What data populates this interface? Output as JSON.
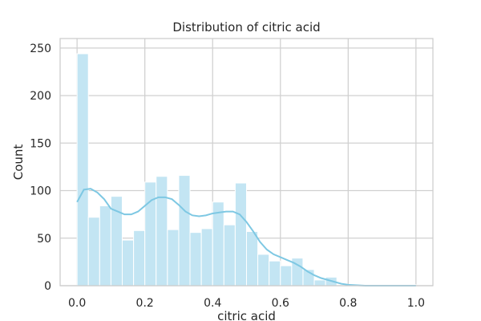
{
  "chart_data": {
    "type": "bar",
    "subtype": "histogram-with-kde",
    "title": "Distribution of citric acid",
    "xlabel": "citric acid",
    "ylabel": "Count",
    "xlim": [
      -0.05,
      1.05
    ],
    "ylim": [
      0,
      260
    ],
    "xticks": [
      "0.0",
      "0.2",
      "0.4",
      "0.6",
      "0.8",
      "1.0"
    ],
    "yticks": [
      "0",
      "50",
      "100",
      "150",
      "200",
      "250"
    ],
    "bin_width": 0.0333,
    "bin_starts": [
      0.0,
      0.0333,
      0.0667,
      0.1,
      0.1333,
      0.1667,
      0.2,
      0.2333,
      0.2667,
      0.3,
      0.3333,
      0.3667,
      0.4,
      0.4333,
      0.4667,
      0.5,
      0.5333,
      0.5667,
      0.6,
      0.6333,
      0.6667,
      0.7,
      0.7333,
      0.7667,
      0.8,
      0.8333,
      0.8667,
      0.9,
      0.9333,
      0.9667
    ],
    "counts": [
      244,
      72,
      84,
      94,
      48,
      58,
      109,
      115,
      59,
      116,
      56,
      60,
      88,
      64,
      108,
      57,
      33,
      26,
      21,
      29,
      17,
      6,
      9,
      0,
      0,
      0,
      0,
      0,
      0,
      1
    ],
    "kde": {
      "x": [
        0.0,
        0.02,
        0.04,
        0.06,
        0.08,
        0.1,
        0.12,
        0.14,
        0.16,
        0.18,
        0.2,
        0.22,
        0.24,
        0.26,
        0.28,
        0.3,
        0.32,
        0.34,
        0.36,
        0.38,
        0.4,
        0.42,
        0.44,
        0.46,
        0.48,
        0.5,
        0.52,
        0.54,
        0.56,
        0.58,
        0.6,
        0.62,
        0.64,
        0.66,
        0.68,
        0.7,
        0.72,
        0.74,
        0.76,
        0.78,
        0.8,
        0.85,
        0.9,
        0.95,
        1.0
      ],
      "y": [
        88,
        101,
        102,
        98,
        91,
        81,
        78,
        75,
        75,
        78,
        84,
        90,
        93,
        93,
        91,
        85,
        78,
        74,
        73,
        74,
        76,
        77,
        78,
        78,
        75,
        67,
        57,
        46,
        38,
        33,
        30,
        27,
        24,
        20,
        15,
        11,
        8,
        6,
        4,
        2,
        1,
        0,
        0,
        0,
        0
      ]
    },
    "grid": true,
    "bar_color": "#c3e5f3",
    "line_color": "#7ec8e3",
    "legend": false
  }
}
